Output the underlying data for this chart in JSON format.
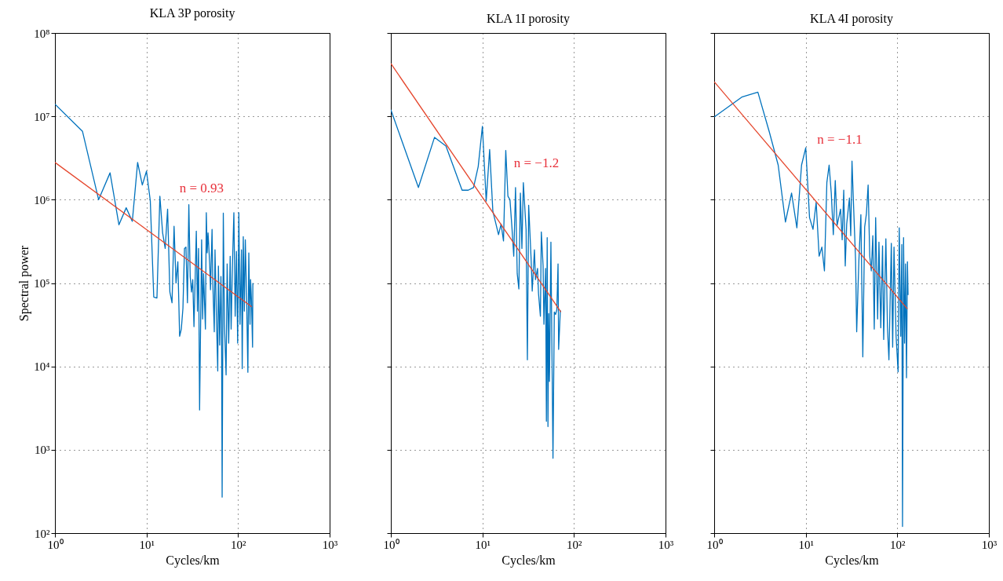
{
  "chart_data": [
    {
      "type": "line",
      "title": "KLA 3P porosity",
      "xlabel": "Cycles/km",
      "ylabel": "Spectral power",
      "log": "xy",
      "grid": true,
      "xlim": [
        1,
        1000
      ],
      "xticks": [
        {
          "value": 1,
          "label": "10⁰"
        },
        {
          "value": 10,
          "label": "10¹"
        },
        {
          "value": 100,
          "label": "10²"
        },
        {
          "value": 1000,
          "label": "10³"
        }
      ],
      "ylim": [
        100,
        100000000
      ],
      "yticks": [
        {
          "value": 100,
          "label": "10²"
        },
        {
          "value": 1000,
          "label": "10³"
        },
        {
          "value": 10000,
          "label": "10⁴"
        },
        {
          "value": 100000,
          "label": "10⁵"
        },
        {
          "value": 1000000,
          "label": "10⁶"
        },
        {
          "value": 10000000,
          "label": "10⁷"
        },
        {
          "value": 100000000,
          "label": "10⁸"
        }
      ],
      "series": [
        {
          "color": "#0072bd",
          "x": [
            1,
            2,
            3,
            4,
            5,
            6,
            7,
            8,
            9,
            10,
            11,
            12,
            13,
            14,
            15,
            16,
            17,
            18,
            19,
            20,
            21,
            22,
            23,
            24,
            25,
            26,
            27,
            28,
            29,
            30,
            31,
            32,
            33,
            35,
            36,
            37,
            38,
            40,
            41,
            42,
            44,
            45,
            46,
            47,
            49,
            50,
            52,
            53,
            55,
            56,
            58,
            60,
            61,
            63,
            65,
            66,
            67,
            69,
            71,
            74,
            76,
            79,
            82,
            84,
            87,
            90,
            93,
            96,
            99,
            102,
            105,
            109,
            111,
            114,
            117,
            120,
            124,
            128,
            131,
            135,
            137,
            140,
            144,
            145
          ],
          "values": [
            14000000.0,
            6600000.0,
            1000000.0,
            2100000.0,
            500000.0,
            800000.0,
            550000.0,
            2800000.0,
            1500000.0,
            2200000.0,
            970000.0,
            68000.0,
            66000.0,
            1100000.0,
            400000.0,
            260000.0,
            770000.0,
            78000.0,
            58000.0,
            480000.0,
            100000.0,
            180000.0,
            23000.0,
            28000.0,
            50000.0,
            260000.0,
            270000.0,
            58000.0,
            870000.0,
            120000.0,
            78000.0,
            110000.0,
            30000.0,
            420000.0,
            46000.0,
            260000.0,
            3000.0,
            330000.0,
            37000.0,
            130000.0,
            28000.0,
            700000.0,
            230000.0,
            400000.0,
            170000.0,
            83000.0,
            440000.0,
            100000.0,
            26000.0,
            250000.0,
            40000.0,
            8800.0,
            160000.0,
            18000.0,
            120000.0,
            35000.0,
            270.0,
            690000.0,
            32000.0,
            7900.0,
            170000.0,
            19000.0,
            210000.0,
            28000.0,
            180000.0,
            700000.0,
            40000.0,
            240000.0,
            19000.0,
            700000.0,
            32000.0,
            250000.0,
            9400.0,
            360000.0,
            46000.0,
            330000.0,
            67000.0,
            8500.0,
            230000.0,
            32000.0,
            110000.0,
            63000.0,
            17000.0,
            100000.0
          ]
        },
        {
          "color": "#e5452b",
          "x": [
            1,
            141
          ],
          "values": [
            2800000.0,
            52000.0
          ]
        }
      ],
      "annotations": [
        "n = 0.93"
      ]
    },
    {
      "type": "line",
      "title": "KLA 1I porosity",
      "xlabel": "Cycles/km",
      "log": "xy",
      "grid": true,
      "tick_labels": "x",
      "xlim": [
        1,
        1000
      ],
      "xticks": [
        {
          "value": 1,
          "label": "10⁰"
        },
        {
          "value": 10,
          "label": "10¹"
        },
        {
          "value": 100,
          "label": "10²"
        },
        {
          "value": 1000,
          "label": "10³"
        }
      ],
      "ylim": [
        100,
        100000000
      ],
      "yticks": [
        {
          "value": 100,
          "label": null
        },
        {
          "value": 1000,
          "label": null
        },
        {
          "value": 10000,
          "label": null
        },
        {
          "value": 100000,
          "label": null
        },
        {
          "value": 1000000,
          "label": null
        },
        {
          "value": 10000000,
          "label": null
        },
        {
          "value": 100000000,
          "label": null
        }
      ],
      "series": [
        {
          "color": "#0072bd",
          "x": [
            1,
            2,
            3,
            4,
            6,
            7,
            8,
            9,
            10,
            11,
            12,
            13,
            15,
            16,
            17,
            18,
            19,
            20,
            21,
            22,
            23,
            24,
            25,
            26,
            27,
            28,
            30,
            31,
            32,
            34,
            35,
            37,
            38,
            40,
            41,
            43,
            44,
            46,
            47,
            49,
            50,
            51,
            52,
            53,
            54,
            56,
            57,
            59,
            61,
            63,
            65,
            67,
            68,
            71
          ],
          "values": [
            12000000.0,
            1400000.0,
            5600000.0,
            4400000.0,
            1300000.0,
            1300000.0,
            1400000.0,
            2500000.0,
            7600000.0,
            960000.0,
            4000000.0,
            730000.0,
            380000.0,
            510000.0,
            320000.0,
            3900000.0,
            1100000.0,
            1000000.0,
            470000.0,
            210000.0,
            1400000.0,
            130000.0,
            85000.0,
            1200000.0,
            260000.0,
            1600000.0,
            440000.0,
            12000.0,
            860000.0,
            200000.0,
            80000.0,
            250000.0,
            110000.0,
            150000.0,
            75000.0,
            40000.0,
            410000.0,
            160000.0,
            32000.0,
            150000.0,
            2200.0,
            350000.0,
            1900.0,
            43000.0,
            6600.0,
            310000.0,
            40000.0,
            790.0,
            45000.0,
            42000.0,
            48000.0,
            170000.0,
            16000.0,
            47000.0
          ]
        },
        {
          "color": "#e5452b",
          "x": [
            1,
            72
          ],
          "values": [
            43000000.0,
            45000.0
          ]
        }
      ],
      "annotations": [
        "n = −1.2"
      ]
    },
    {
      "type": "line",
      "title": "KLA 4I porosity",
      "xlabel": "Cycles/km",
      "log": "xy",
      "grid": true,
      "tick_labels": "x",
      "xlim": [
        1,
        1000
      ],
      "xticks": [
        {
          "value": 1,
          "label": "10⁰"
        },
        {
          "value": 10,
          "label": "10¹"
        },
        {
          "value": 100,
          "label": "10²"
        },
        {
          "value": 1000,
          "label": "10³"
        }
      ],
      "ylim": [
        100,
        100000000
      ],
      "yticks": [
        {
          "value": 100,
          "label": null
        },
        {
          "value": 1000,
          "label": null
        },
        {
          "value": 10000,
          "label": null
        },
        {
          "value": 100000,
          "label": null
        },
        {
          "value": 1000000,
          "label": null
        },
        {
          "value": 10000000,
          "label": null
        },
        {
          "value": 100000000,
          "label": null
        }
      ],
      "series": [
        {
          "color": "#0072bd",
          "x": [
            1,
            2,
            3,
            4,
            5,
            6,
            7,
            8,
            9,
            10,
            11,
            12,
            13,
            14,
            15,
            16,
            17,
            18,
            19,
            20,
            21,
            22,
            24,
            25,
            26,
            27,
            28,
            30,
            31,
            32,
            33,
            35,
            36,
            38,
            40,
            42,
            44,
            46,
            48,
            50,
            52,
            54,
            56,
            58,
            61,
            63,
            66,
            69,
            71,
            75,
            78,
            81,
            86,
            89,
            92,
            97,
            102,
            105,
            109,
            112,
            114,
            117,
            120,
            123,
            126,
            129,
            131
          ],
          "values": [
            9800000.0,
            17000000.0,
            19500000.0,
            6500000.0,
            2600000.0,
            540000.0,
            1200000.0,
            460000.0,
            2600000.0,
            4200000.0,
            610000.0,
            440000.0,
            930000.0,
            210000.0,
            270000.0,
            140000.0,
            1600000.0,
            2600000.0,
            1200000.0,
            380000.0,
            1700000.0,
            490000.0,
            770000.0,
            330000.0,
            1300000.0,
            160000.0,
            510000.0,
            1050000.0,
            370000.0,
            2900000.0,
            1100000.0,
            190000.0,
            26000.0,
            180000.0,
            660000.0,
            13000.0,
            470000.0,
            680000.0,
            1500000.0,
            210000.0,
            140000.0,
            370000.0,
            28000.0,
            610000.0,
            37000.0,
            310000.0,
            29000.0,
            280000.0,
            21000.0,
            340000.0,
            30000.0,
            12000.0,
            300000.0,
            17000.0,
            270000.0,
            23000.0,
            8600.0,
            460000.0,
            23000.0,
            290000.0,
            120.0,
            350000.0,
            19000.0,
            170000.0,
            7300.0,
            180000.0,
            72000.0
          ]
        },
        {
          "color": "#e5452b",
          "x": [
            1,
            129
          ],
          "values": [
            26000000.0,
            49000.0
          ]
        }
      ],
      "annotations": [
        "n = −1.1"
      ]
    }
  ]
}
